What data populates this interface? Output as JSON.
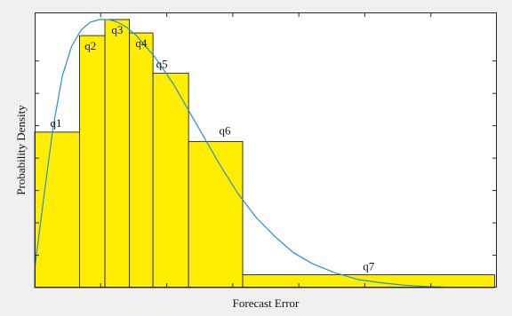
{
  "chart_data": {
    "type": "bar",
    "xlabel": "Forecast Error",
    "ylabel": "Probability Density",
    "grid": false,
    "xlim": [
      0,
      1
    ],
    "ylim": [
      0,
      1
    ],
    "bins": [
      {
        "label": "q1",
        "x0": 0.0,
        "x1": 0.097,
        "value": 0.58
      },
      {
        "label": "q2",
        "x0": 0.097,
        "x1": 0.152,
        "value": 0.94
      },
      {
        "label": "q3",
        "x0": 0.152,
        "x1": 0.205,
        "value": 1.0
      },
      {
        "label": "q4",
        "x0": 0.205,
        "x1": 0.256,
        "value": 0.95
      },
      {
        "label": "q5",
        "x0": 0.256,
        "x1": 0.333,
        "value": 0.8
      },
      {
        "label": "q6",
        "x0": 0.333,
        "x1": 0.45,
        "value": 0.545
      },
      {
        "label": "q7",
        "x0": 0.45,
        "x1": 0.995,
        "value": 0.048
      }
    ],
    "curve": {
      "x": [
        0.0,
        0.02,
        0.04,
        0.06,
        0.08,
        0.1,
        0.12,
        0.14,
        0.16,
        0.18,
        0.2,
        0.22,
        0.24,
        0.26,
        0.28,
        0.3,
        0.33,
        0.36,
        0.4,
        0.44,
        0.48,
        0.52,
        0.56,
        0.6,
        0.65,
        0.7,
        0.75,
        0.8,
        0.85,
        0.9
      ],
      "y": [
        0.07,
        0.34,
        0.6,
        0.79,
        0.9,
        0.96,
        0.99,
        1.0,
        1.0,
        0.99,
        0.97,
        0.94,
        0.9,
        0.86,
        0.81,
        0.76,
        0.67,
        0.58,
        0.46,
        0.35,
        0.26,
        0.19,
        0.13,
        0.09,
        0.055,
        0.03,
        0.018,
        0.009,
        0.004,
        0.001
      ]
    },
    "colors": {
      "bar": "#ffee00",
      "bar_edge": "#222222",
      "curve": "#2a8fd0",
      "plot_bg": "#ffffff",
      "figure_bg": "#f0f0f0"
    }
  }
}
